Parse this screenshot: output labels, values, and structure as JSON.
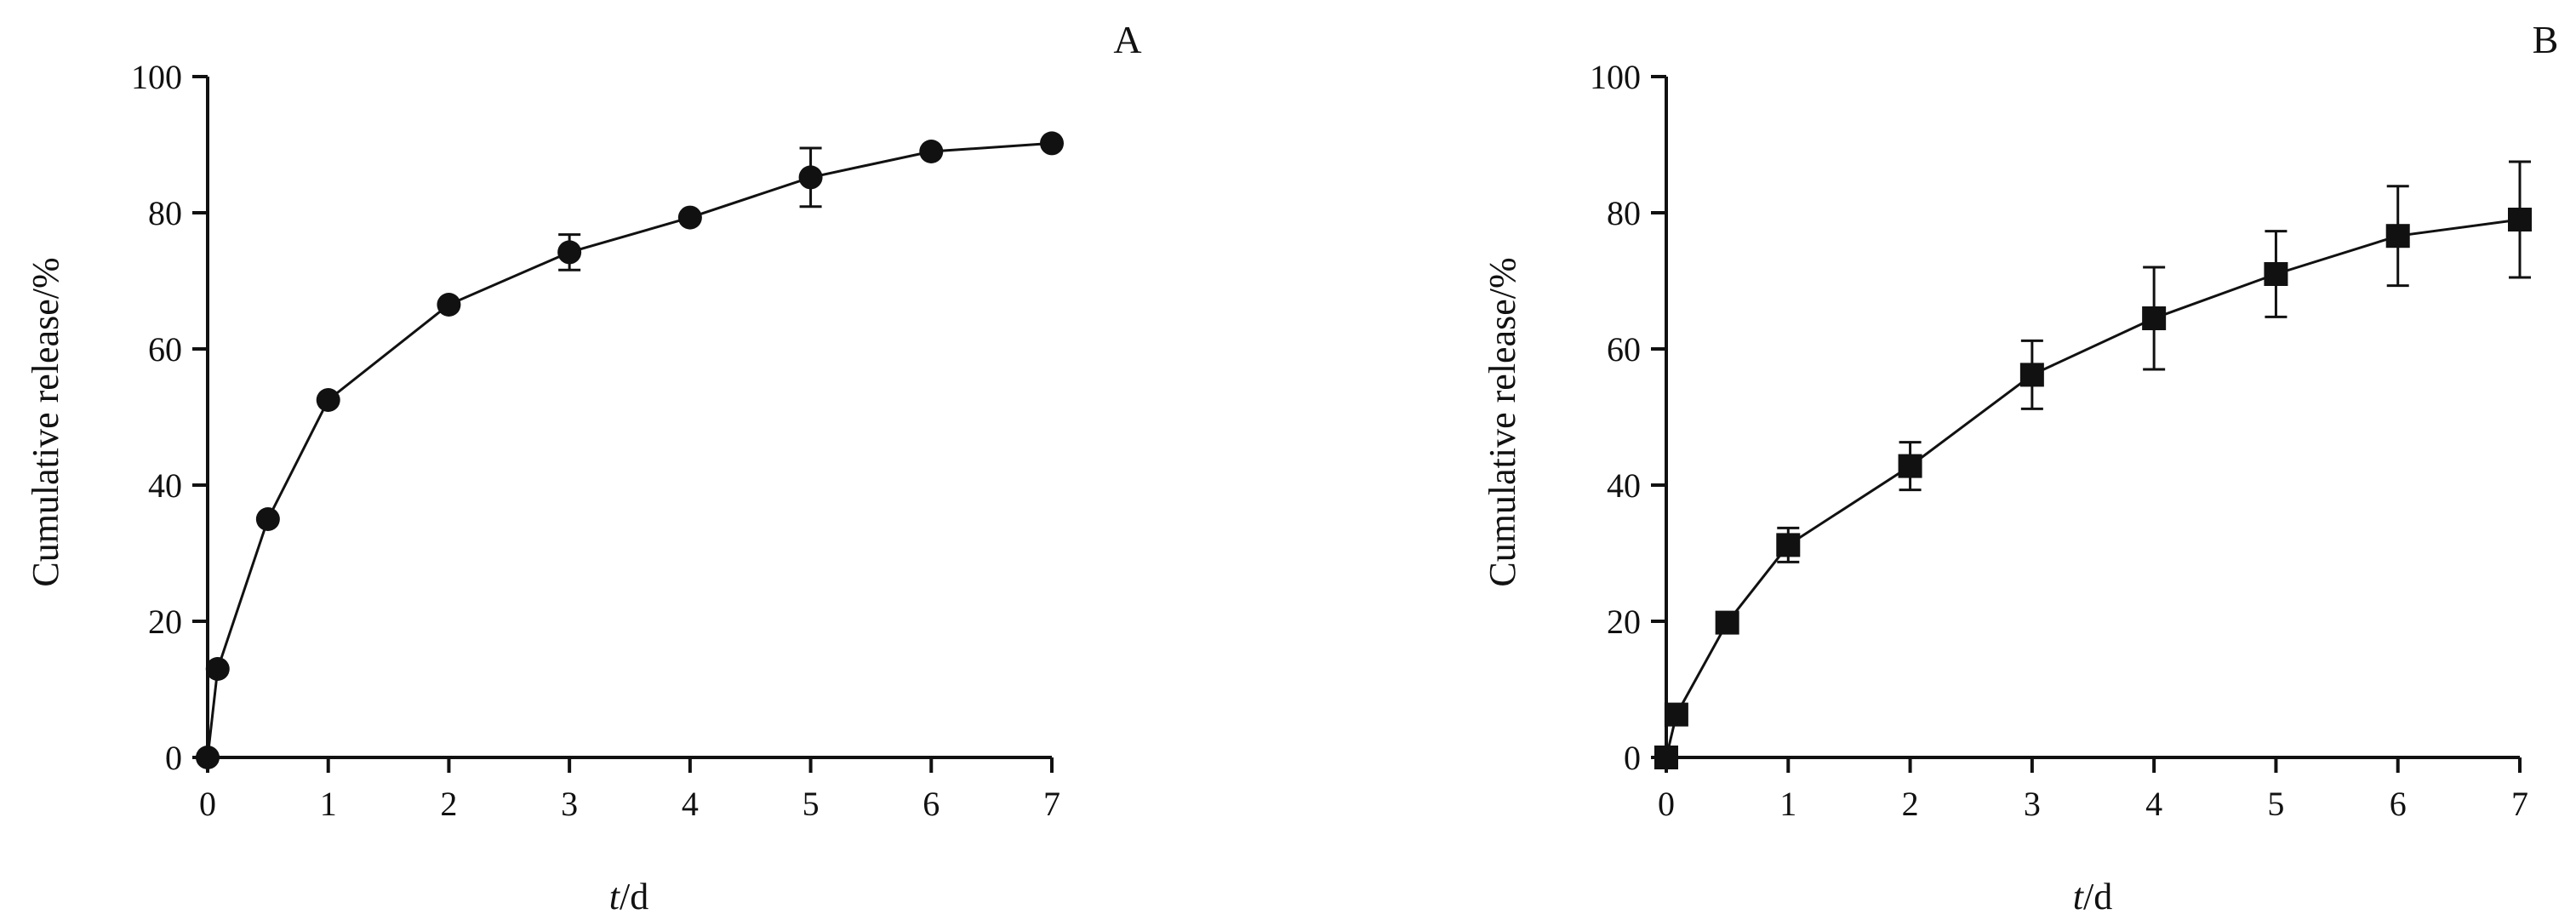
{
  "chart_data": [
    {
      "type": "line",
      "panel_label": "A",
      "xlabel_italic": "t",
      "xlabel_rest": "/d",
      "ylabel": "Cumulative release/%",
      "xlim": [
        0,
        7
      ],
      "ylim": [
        0,
        100
      ],
      "x_ticks": [
        0,
        1,
        2,
        3,
        4,
        5,
        6,
        7
      ],
      "y_ticks": [
        0,
        20,
        40,
        60,
        80,
        100
      ],
      "marker": "circle",
      "grid": false,
      "color": "#111111",
      "x": [
        0,
        0.083,
        0.5,
        1,
        2,
        3,
        4,
        5,
        6,
        7
      ],
      "y": [
        0,
        13,
        35,
        52.5,
        66.5,
        74.2,
        79.3,
        85.2,
        89.0,
        90.2
      ],
      "error": [
        0,
        0,
        0,
        0,
        0,
        2.6,
        0,
        4.3,
        0,
        0
      ]
    },
    {
      "type": "line",
      "panel_label": "B",
      "xlabel_italic": "t",
      "xlabel_rest": "/d",
      "ylabel": "Cumulative release/%",
      "xlim": [
        0,
        7
      ],
      "ylim": [
        0,
        100
      ],
      "x_ticks": [
        0,
        1,
        2,
        3,
        4,
        5,
        6,
        7
      ],
      "y_ticks": [
        0,
        20,
        40,
        60,
        80,
        100
      ],
      "marker": "square",
      "grid": false,
      "color": "#111111",
      "x": [
        0,
        0.083,
        0.5,
        1,
        2,
        3,
        4,
        5,
        6,
        7
      ],
      "y": [
        0,
        6.3,
        19.8,
        31.2,
        42.8,
        56.2,
        64.5,
        71.0,
        76.6,
        79.0
      ],
      "error": [
        0,
        0,
        0,
        2.5,
        3.5,
        5.0,
        7.5,
        6.3,
        7.3,
        8.5
      ]
    }
  ]
}
